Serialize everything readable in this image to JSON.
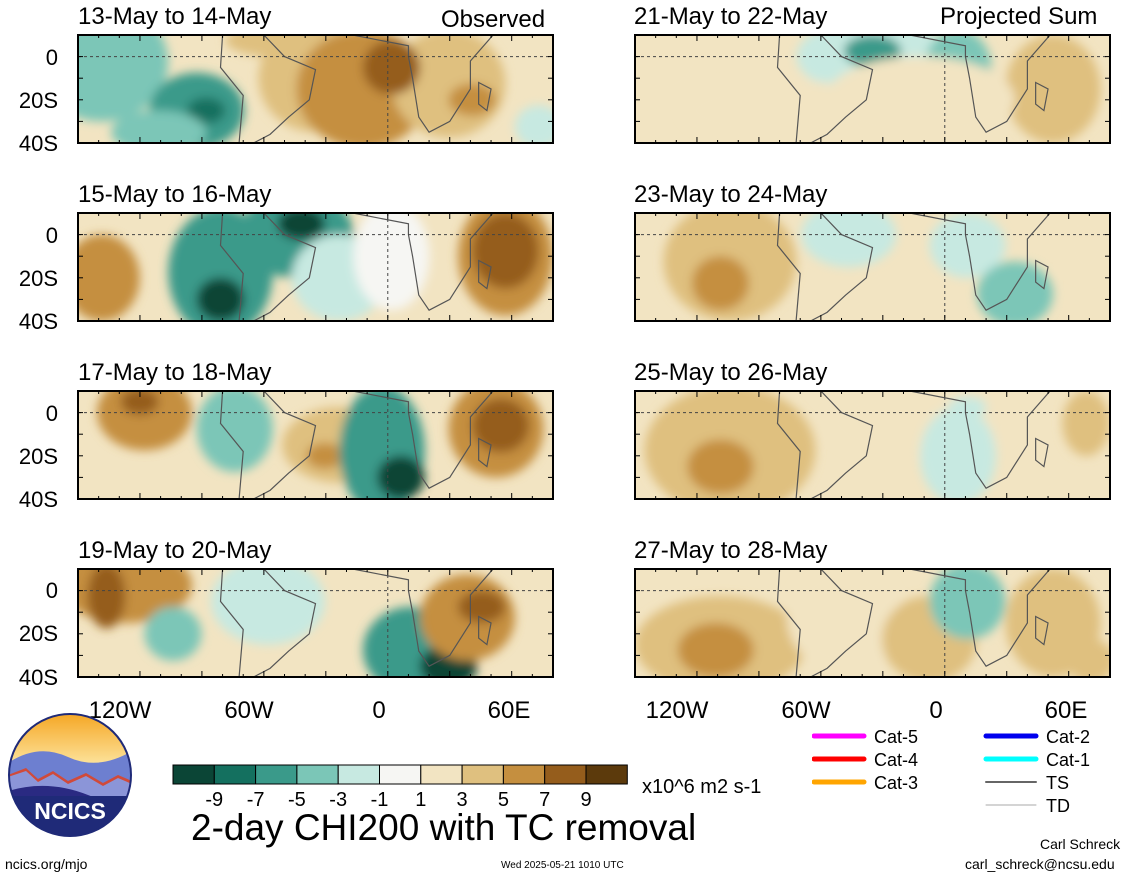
{
  "colors": {
    "dn9": "#0b4536",
    "dn7": "#14705f",
    "dn5": "#3a9a8a",
    "dn3": "#7bc6b7",
    "dn1": "#c7e9e1",
    "zero": "#f6f6f3",
    "up1": "#f2e4c2",
    "up3": "#dfc07f",
    "up5": "#c58f3f",
    "up7": "#955d1c",
    "up9": "#5c3a0c"
  },
  "panels": [
    {
      "title": "13-May to 14-May",
      "tag": "Observed"
    },
    {
      "title": "15-May to 16-May",
      "tag": ""
    },
    {
      "title": "17-May to 18-May",
      "tag": ""
    },
    {
      "title": "19-May to 20-May",
      "tag": ""
    },
    {
      "title": "21-May to 22-May",
      "tag": "Projected Sum"
    },
    {
      "title": "23-May to 24-May",
      "tag": ""
    },
    {
      "title": "25-May to 26-May",
      "tag": ""
    },
    {
      "title": "27-May to 28-May",
      "tag": ""
    }
  ],
  "yaxis": [
    "0",
    "20S",
    "40S"
  ],
  "xaxis": [
    "120W",
    "60W",
    "0",
    "60E"
  ],
  "colorbar": {
    "ticks": [
      "-9",
      "-7",
      "-5",
      "-3",
      "-1",
      "1",
      "3",
      "5",
      "7",
      "9"
    ],
    "units": "x10^6 m2 s-1"
  },
  "legend": [
    {
      "label": "Cat-5",
      "color": "#ff00ff"
    },
    {
      "label": "Cat-4",
      "color": "#ff0000"
    },
    {
      "label": "Cat-3",
      "color": "#ffa500"
    },
    {
      "label": "Cat-2",
      "color": "#0000ee"
    },
    {
      "label": "Cat-1",
      "color": "#00ffff"
    },
    {
      "label": "TS",
      "color": "#666666"
    },
    {
      "label": "TD",
      "color": "#aaaaaa"
    }
  ],
  "main_title": "2-day CHI200 with TC removal",
  "logo_text": "NCICS",
  "footer": {
    "left": "ncics.org/mjo",
    "center": "Wed 2025-05-21 1010 UTC",
    "author": "Carl Schreck",
    "email": "carl_schreck@ncsu.edu"
  }
}
